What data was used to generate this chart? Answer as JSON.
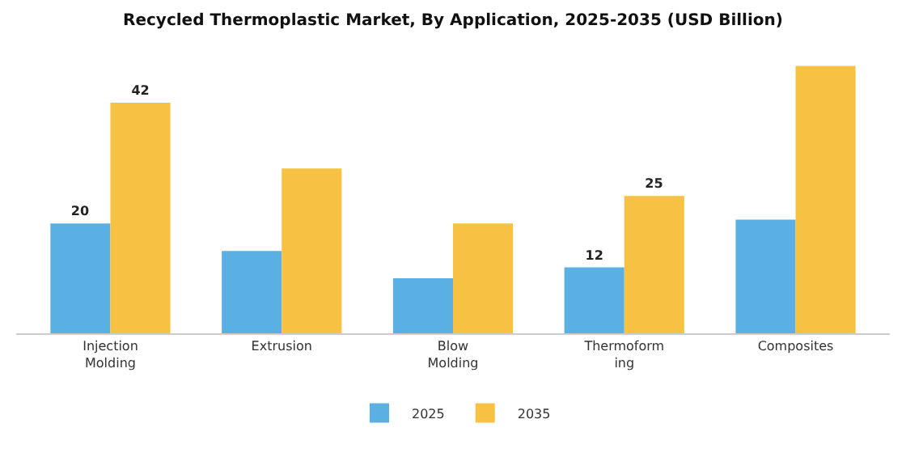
{
  "chart_data": {
    "type": "bar",
    "title": "Recycled Thermoplastic Market, By Application, 2025-2035 (USD Billion)",
    "categories": [
      "Injection Molding",
      "Extrusion",
      "Blow Molding",
      "Thermoforming",
      "Composites"
    ],
    "series": [
      {
        "name": "2025",
        "color": "#5bb0e3",
        "values": [
          20,
          15,
          10,
          12,
          20.7
        ],
        "value_labels": [
          "20",
          null,
          null,
          "12",
          null
        ]
      },
      {
        "name": "2035",
        "color": "#f7c244",
        "values": [
          42,
          30,
          20,
          25,
          48.7
        ],
        "value_labels": [
          "42",
          null,
          null,
          "25",
          null
        ]
      }
    ],
    "legend": "bottom"
  }
}
